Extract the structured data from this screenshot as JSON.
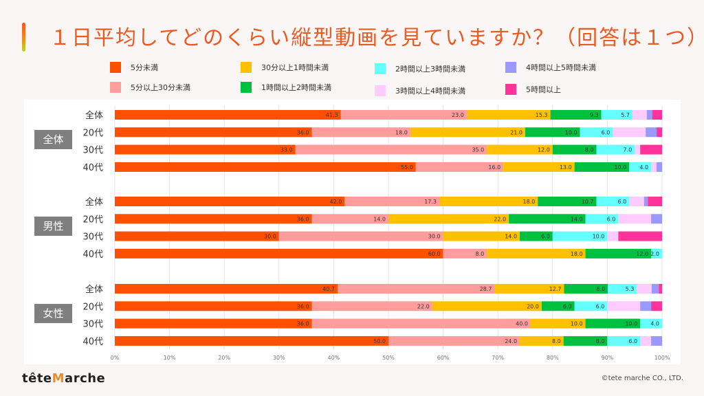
{
  "title": "１日平均してどのくらい縦型動画を見ていますか？（回答は１つ）",
  "footer": {
    "logo_pre": "tête",
    "logo_m": "M",
    "logo_post": "arche",
    "copyright": "©tete marche CO., LTD."
  },
  "chart_data": {
    "type": "bar",
    "orientation": "horizontal",
    "stacked": "100%",
    "title": "１日平均してどのくらい縦型動画を見ていますか？（回答は１つ）",
    "xlabel": "",
    "ylabel": "",
    "xlim": [
      0,
      100
    ],
    "x_ticks": [
      "0%",
      "10%",
      "20%",
      "30%",
      "40%",
      "50%",
      "60%",
      "70%",
      "80%",
      "90%",
      "100%"
    ],
    "grid": true,
    "legend_position": "top",
    "legend": [
      {
        "name": "5分未満",
        "color": "#ff4f00"
      },
      {
        "name": "5分以上30分未満",
        "color": "#ff9c9c"
      },
      {
        "name": "30分以上1時間未満",
        "color": "#ffc000"
      },
      {
        "name": "1時間以上2時間未満",
        "color": "#00c040"
      },
      {
        "name": "2時間以上3時間未満",
        "color": "#66ffff"
      },
      {
        "name": "3時間以上4時間未満",
        "color": "#ffccff"
      },
      {
        "name": "4時間以上5時間未満",
        "color": "#9999ff"
      },
      {
        "name": "5時間以上",
        "color": "#ff3399"
      }
    ],
    "groups": [
      {
        "name": "全体",
        "rows": [
          {
            "label": "全体",
            "values": [
              41.3,
              23.0,
              15.3,
              9.3,
              5.7,
              2.6,
              1.0,
              1.8
            ]
          },
          {
            "label": "20代",
            "values": [
              36.0,
              18.0,
              21.0,
              10.0,
              6.0,
              6.0,
              2.0,
              1.0
            ]
          },
          {
            "label": "30代",
            "values": [
              33.0,
              35.0,
              12.0,
              8.0,
              7.0,
              1.0,
              0,
              4.0
            ]
          },
          {
            "label": "40代",
            "values": [
              55.0,
              16.0,
              13.0,
              10.0,
              4.0,
              1.0,
              1.0,
              0
            ]
          }
        ]
      },
      {
        "name": "男性",
        "rows": [
          {
            "label": "全体",
            "values": [
              42.0,
              17.3,
              18.0,
              10.7,
              6.0,
              2.7,
              0.7,
              2.6
            ]
          },
          {
            "label": "20代",
            "values": [
              36.0,
              14.0,
              22.0,
              14.0,
              6.0,
              6.0,
              2.0,
              0
            ]
          },
          {
            "label": "30代",
            "values": [
              30.0,
              30.0,
              14.0,
              6.0,
              10.0,
              2.0,
              0,
              8.0
            ]
          },
          {
            "label": "40代",
            "values": [
              60.0,
              8.0,
              18.0,
              12.0,
              2.0,
              0,
              0,
              0
            ]
          }
        ]
      },
      {
        "name": "女性",
        "rows": [
          {
            "label": "全体",
            "values": [
              40.7,
              28.7,
              12.7,
              8.0,
              5.3,
              2.7,
              1.3,
              0.6
            ]
          },
          {
            "label": "20代",
            "values": [
              36.0,
              22.0,
              20.0,
              6.0,
              6.0,
              6.0,
              2.0,
              2.0
            ]
          },
          {
            "label": "30代",
            "values": [
              36.0,
              40.0,
              10.0,
              10.0,
              4.0,
              0,
              0,
              0
            ]
          },
          {
            "label": "40代",
            "values": [
              50.0,
              24.0,
              8.0,
              8.0,
              6.0,
              2.0,
              2.0,
              0
            ]
          }
        ]
      }
    ],
    "labeled_series": [
      0,
      1,
      2,
      3,
      4
    ]
  }
}
